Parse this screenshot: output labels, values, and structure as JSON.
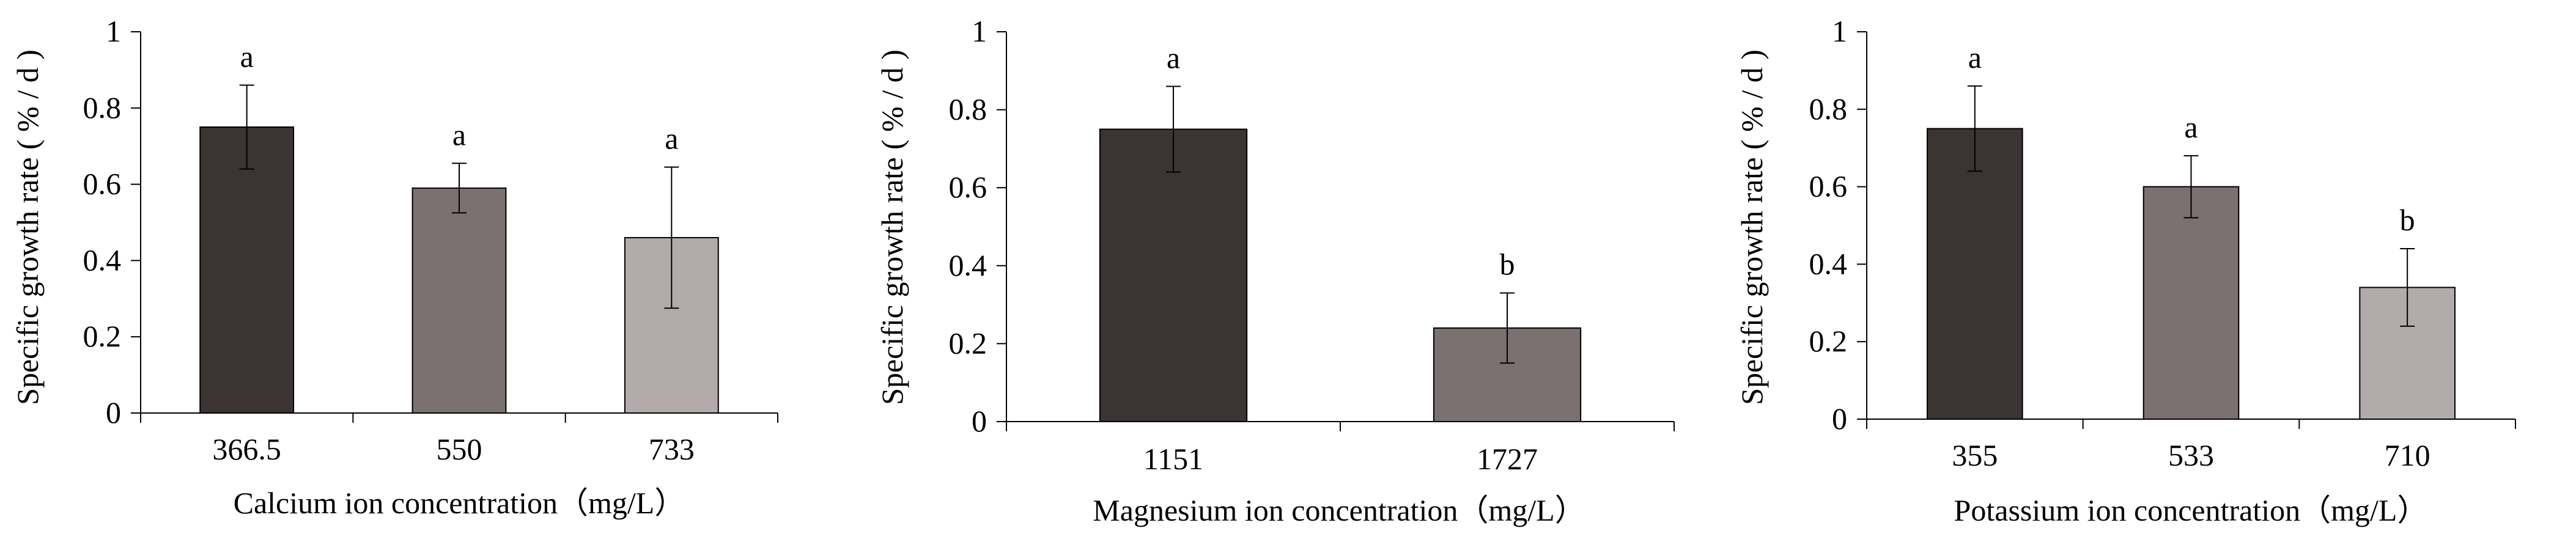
{
  "chart_data": [
    {
      "type": "bar",
      "title": "",
      "xlabel": "Calcium ion concentration（mg/L）",
      "ylabel": "Specific growth rate ( % / d )",
      "ylim": [
        0,
        1
      ],
      "yticks": [
        "0",
        "0.2",
        "0.4",
        "0.6",
        "0.8",
        "1"
      ],
      "grid": false,
      "legend": "none",
      "categories": [
        "366.5",
        "550",
        "733"
      ],
      "values": [
        0.75,
        0.59,
        0.46
      ],
      "error_bars": [
        0.11,
        0.065,
        0.185
      ],
      "significance_labels": [
        "a",
        "a",
        "a"
      ],
      "bar_colors": [
        "#3b3433",
        "#7a7170",
        "#b3abab"
      ]
    },
    {
      "type": "bar",
      "title": "",
      "xlabel": "Magnesium ion concentration（mg/L）",
      "ylabel": "Specific growth rate ( % / d )",
      "ylim": [
        0,
        1
      ],
      "yticks": [
        "0",
        "0.2",
        "0.4",
        "0.6",
        "0.8",
        "1"
      ],
      "grid": false,
      "legend": "none",
      "categories": [
        "1151",
        "1727"
      ],
      "values": [
        0.75,
        0.24
      ],
      "error_bars": [
        0.11,
        0.09
      ],
      "significance_labels": [
        "a",
        "b"
      ],
      "bar_colors": [
        "#3b3433",
        "#7a7170"
      ]
    },
    {
      "type": "bar",
      "title": "",
      "xlabel": "Potassium ion concentration（mg/L）",
      "ylabel": "Specific growth rate ( % / d )",
      "ylim": [
        0,
        1
      ],
      "yticks": [
        "0",
        "0.2",
        "0.4",
        "0.6",
        "0.8",
        "1"
      ],
      "grid": false,
      "legend": "none",
      "categories": [
        "355",
        "533",
        "710"
      ],
      "values": [
        0.75,
        0.6,
        0.34
      ],
      "error_bars": [
        0.11,
        0.08,
        0.1
      ],
      "significance_labels": [
        "a",
        "a",
        "b"
      ],
      "bar_colors": [
        "#3b3433",
        "#7a7170",
        "#b3abab"
      ]
    }
  ]
}
